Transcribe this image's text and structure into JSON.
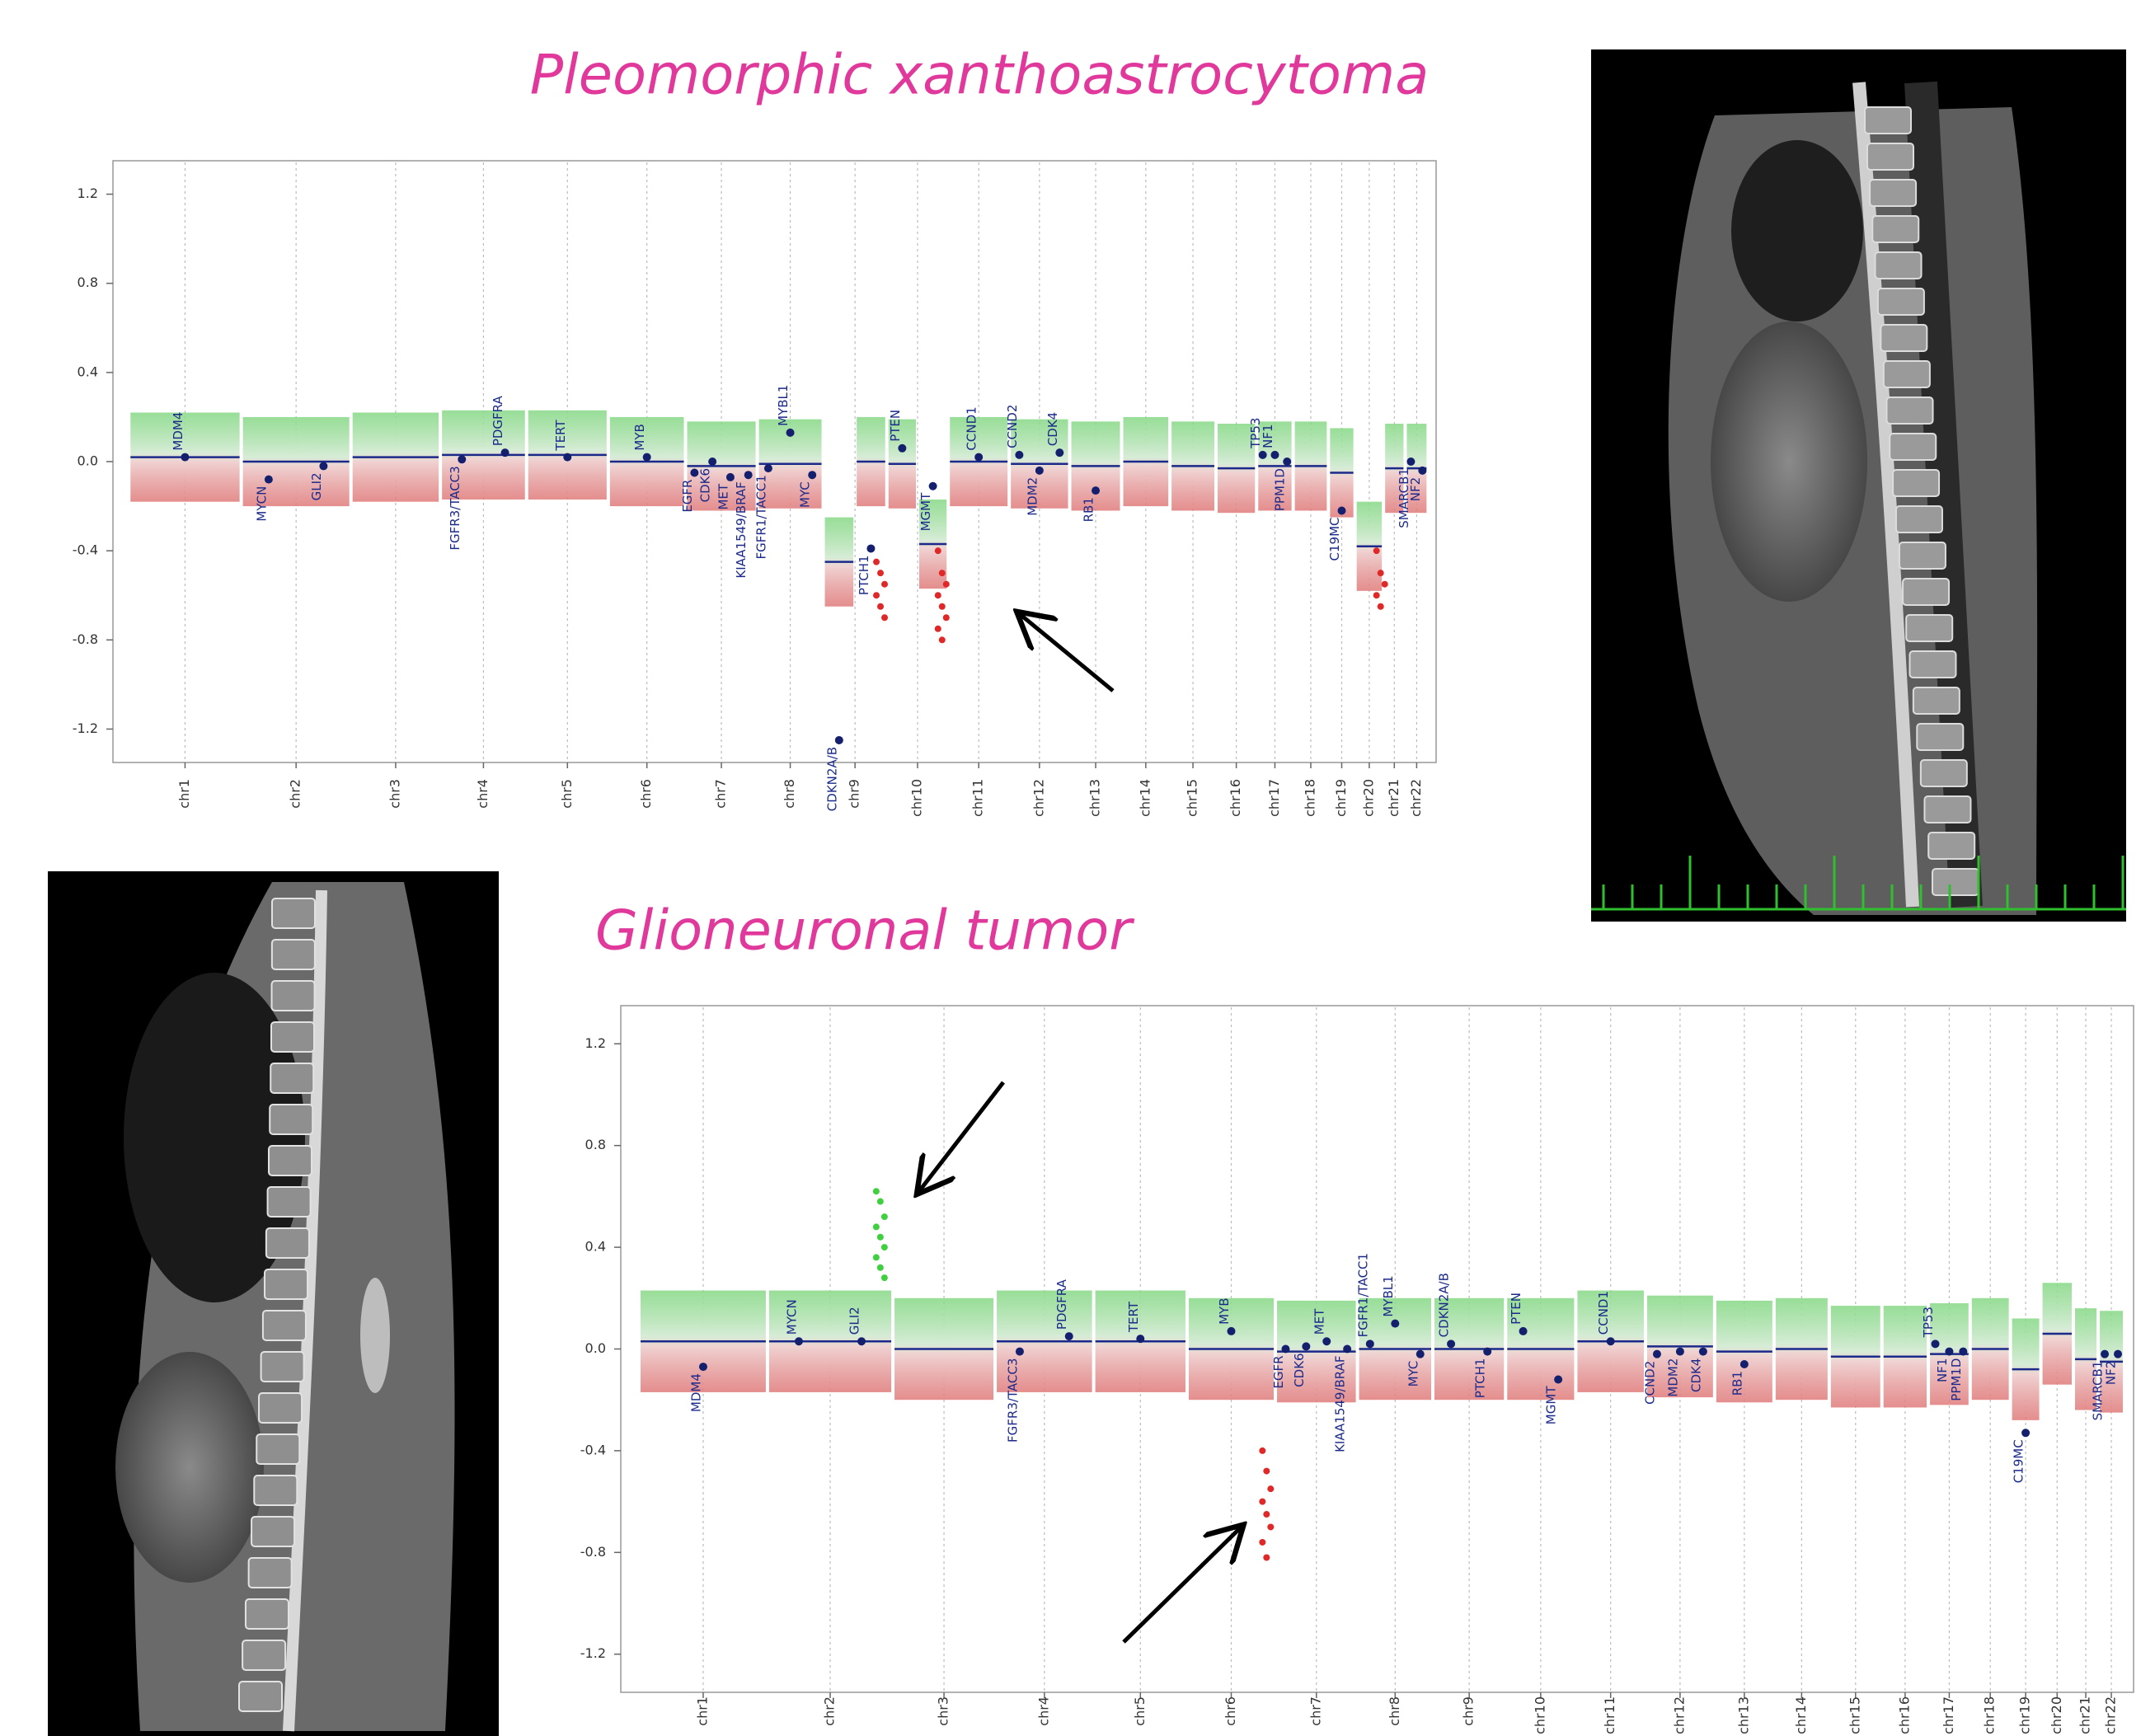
{
  "chart_data": [
    {
      "type": "cnv",
      "title": "Pleomorphic xanthoastrocytoma",
      "categories": [
        "chr1",
        "chr2",
        "chr3",
        "chr4",
        "chr5",
        "chr6",
        "chr7",
        "chr8",
        "chr9",
        "chr10",
        "chr11",
        "chr12",
        "chr13",
        "chr14",
        "chr15",
        "chr16",
        "chr17",
        "chr18",
        "chr19",
        "chr20",
        "chr21",
        "chr22"
      ],
      "values": [
        [
          0.02
        ],
        [
          0.0
        ],
        [
          0.02
        ],
        [
          0.03
        ],
        [
          0.03
        ],
        [
          0.0
        ],
        [
          -0.02
        ],
        [
          -0.01
        ],
        [
          -0.45,
          0.0
        ],
        [
          -0.01,
          -0.37
        ],
        [
          0.0
        ],
        [
          -0.01
        ],
        [
          -0.02
        ],
        [
          0.0
        ],
        [
          -0.02
        ],
        [
          -0.03
        ],
        [
          -0.02
        ],
        [
          -0.02
        ],
        [
          -0.05
        ],
        [
          -0.38
        ],
        [
          -0.03
        ],
        [
          -0.03
        ]
      ],
      "genes": [
        {
          "label": "MDM4",
          "chromosome": "chr1",
          "value": 0.02
        },
        {
          "label": "MYCN",
          "chromosome": "chr2",
          "value": -0.08
        },
        {
          "label": "GLI2",
          "chromosome": "chr2",
          "value": -0.02
        },
        {
          "label": "FGFR3/TACC3",
          "chromosome": "chr4",
          "value": 0.01
        },
        {
          "label": "PDGFRA",
          "chromosome": "chr4",
          "value": 0.04
        },
        {
          "label": "TERT",
          "chromosome": "chr5",
          "value": 0.02
        },
        {
          "label": "MYB",
          "chromosome": "chr6",
          "value": 0.02
        },
        {
          "label": "EGFR",
          "chromosome": "chr7",
          "value": -0.05
        },
        {
          "label": "CDK6",
          "chromosome": "chr7",
          "value": 0.0
        },
        {
          "label": "MET",
          "chromosome": "chr7",
          "value": -0.07
        },
        {
          "label": "KIAA1549/BRAF",
          "chromosome": "chr7",
          "value": -0.06
        },
        {
          "label": "FGFR1/TACC1",
          "chromosome": "chr8",
          "value": -0.03
        },
        {
          "label": "MYBL1",
          "chromosome": "chr8",
          "value": 0.13
        },
        {
          "label": "MYC",
          "chromosome": "chr8",
          "value": -0.06
        },
        {
          "label": "CDKN2A/B",
          "chromosome": "chr9",
          "value": -1.25
        },
        {
          "label": "PTCH1",
          "chromosome": "chr9",
          "value": -0.39
        },
        {
          "label": "PTEN",
          "chromosome": "chr10",
          "value": 0.06
        },
        {
          "label": "MGMT",
          "chromosome": "chr10",
          "value": -0.11
        },
        {
          "label": "CCND1",
          "chromosome": "chr11",
          "value": 0.02
        },
        {
          "label": "CCND2",
          "chromosome": "chr12",
          "value": 0.03
        },
        {
          "label": "MDM2",
          "chromosome": "chr12",
          "value": -0.04
        },
        {
          "label": "CDK4",
          "chromosome": "chr12",
          "value": 0.04
        },
        {
          "label": "RB1",
          "chromosome": "chr13",
          "value": -0.13
        },
        {
          "label": "TP53",
          "chromosome": "chr17",
          "value": 0.03
        },
        {
          "label": "NF1",
          "chromosome": "chr17",
          "value": 0.03
        },
        {
          "label": "PPM1D",
          "chromosome": "chr17",
          "value": 0.0
        },
        {
          "label": "C19MC",
          "chromosome": "chr19",
          "value": -0.22
        },
        {
          "label": "SMARCB1",
          "chromosome": "chr22",
          "value": 0.0
        },
        {
          "label": "NF2",
          "chromosome": "chr22",
          "value": -0.04
        }
      ],
      "clusters": [
        {
          "chromosome": "chr9",
          "values": [
            -0.45,
            -0.5,
            -0.55,
            -0.6,
            -0.65,
            -0.7
          ]
        },
        {
          "chromosome": "chr10",
          "values": [
            -0.4,
            -0.5,
            -0.55,
            -0.6,
            -0.65,
            -0.7,
            -0.75,
            -0.8
          ]
        },
        {
          "chromosome": "chr20",
          "values": [
            -0.4,
            -0.5,
            -0.55,
            -0.6,
            -0.65
          ]
        }
      ],
      "ylim": [
        -1.35,
        1.35
      ],
      "yticks": [
        1.2,
        0.8,
        0.4,
        {
          "value": 0,
          "label": "0.0"
        },
        -0.4,
        -0.8,
        -1.2
      ]
    },
    {
      "type": "cnv",
      "title": "Glioneuronal tumor",
      "categories": [
        "chr1",
        "chr2",
        "chr3",
        "chr4",
        "chr5",
        "chr6",
        "chr7",
        "chr8",
        "chr9",
        "chr10",
        "chr11",
        "chr12",
        "chr13",
        "chr14",
        "chr15",
        "chr16",
        "chr17",
        "chr18",
        "chr19",
        "chr20",
        "chr21",
        "chr22"
      ],
      "values": [
        [
          0.03
        ],
        [
          0.03
        ],
        [
          0.0
        ],
        [
          0.03
        ],
        [
          0.03
        ],
        [
          0.0
        ],
        [
          -0.01
        ],
        [
          0.0
        ],
        [
          0.0
        ],
        [
          0.0
        ],
        [
          0.03
        ],
        [
          0.01
        ],
        [
          -0.01
        ],
        [
          0.0
        ],
        [
          -0.03
        ],
        [
          -0.03
        ],
        [
          -0.02
        ],
        [
          0.0
        ],
        [
          -0.08
        ],
        [
          0.06
        ],
        [
          -0.04
        ],
        [
          -0.05
        ]
      ],
      "genes": [
        {
          "label": "MDM4",
          "chromosome": "chr1",
          "value": -0.07
        },
        {
          "label": "MYCN",
          "chromosome": "chr2",
          "value": 0.03
        },
        {
          "label": "GLI2",
          "chromosome": "chr2",
          "value": 0.03
        },
        {
          "label": "FGFR3/TACC3",
          "chromosome": "chr4",
          "value": -0.01
        },
        {
          "label": "PDGFRA",
          "chromosome": "chr4",
          "value": 0.05
        },
        {
          "label": "TERT",
          "chromosome": "chr5",
          "value": 0.04
        },
        {
          "label": "MYB",
          "chromosome": "chr6",
          "value": 0.07
        },
        {
          "label": "EGFR",
          "chromosome": "chr7",
          "value": 0.0
        },
        {
          "label": "CDK6",
          "chromosome": "chr7",
          "value": 0.01
        },
        {
          "label": "MET",
          "chromosome": "chr7",
          "value": 0.03
        },
        {
          "label": "KIAA1549/BRAF",
          "chromosome": "chr7",
          "value": 0.0
        },
        {
          "label": "FGFR1/TACC1",
          "chromosome": "chr8",
          "value": 0.02
        },
        {
          "label": "MYBL1",
          "chromosome": "chr8",
          "value": 0.1
        },
        {
          "label": "MYC",
          "chromosome": "chr8",
          "value": -0.02
        },
        {
          "label": "CDKN2A/B",
          "chromosome": "chr9",
          "value": 0.02
        },
        {
          "label": "PTCH1",
          "chromosome": "chr9",
          "value": -0.01
        },
        {
          "label": "PTEN",
          "chromosome": "chr10",
          "value": 0.07
        },
        {
          "label": "MGMT",
          "chromosome": "chr10",
          "value": -0.12
        },
        {
          "label": "CCND1",
          "chromosome": "chr11",
          "value": 0.03
        },
        {
          "label": "CCND2",
          "chromosome": "chr12",
          "value": -0.02
        },
        {
          "label": "MDM2",
          "chromosome": "chr12",
          "value": -0.01
        },
        {
          "label": "CDK4",
          "chromosome": "chr12",
          "value": -0.01
        },
        {
          "label": "RB1",
          "chromosome": "chr13",
          "value": -0.06
        },
        {
          "label": "TP53",
          "chromosome": "chr17",
          "value": 0.02
        },
        {
          "label": "NF1",
          "chromosome": "chr17",
          "value": -0.01
        },
        {
          "label": "PPM1D",
          "chromosome": "chr17",
          "value": -0.01
        },
        {
          "label": "C19MC",
          "chromosome": "chr19",
          "value": -0.33
        },
        {
          "label": "SMARCB1",
          "chromosome": "chr22",
          "value": -0.02
        },
        {
          "label": "NF2",
          "chromosome": "chr22",
          "value": -0.02
        }
      ],
      "clusters": [
        {
          "chromosome": "chr2",
          "values": [
            0.62,
            0.58,
            0.52,
            0.48,
            0.44,
            0.4,
            0.36,
            0.32,
            0.28
          ]
        },
        {
          "chromosome": "chr6",
          "values": [
            -0.4,
            -0.48,
            -0.55,
            -0.6,
            -0.65,
            -0.7,
            -0.76,
            -0.82
          ]
        }
      ],
      "ylim": [
        -1.35,
        1.35
      ],
      "yticks": [
        1.2,
        0.8,
        0.4,
        {
          "value": 0,
          "label": "0.0"
        },
        -0.4,
        -0.8,
        -1.2
      ]
    }
  ]
}
